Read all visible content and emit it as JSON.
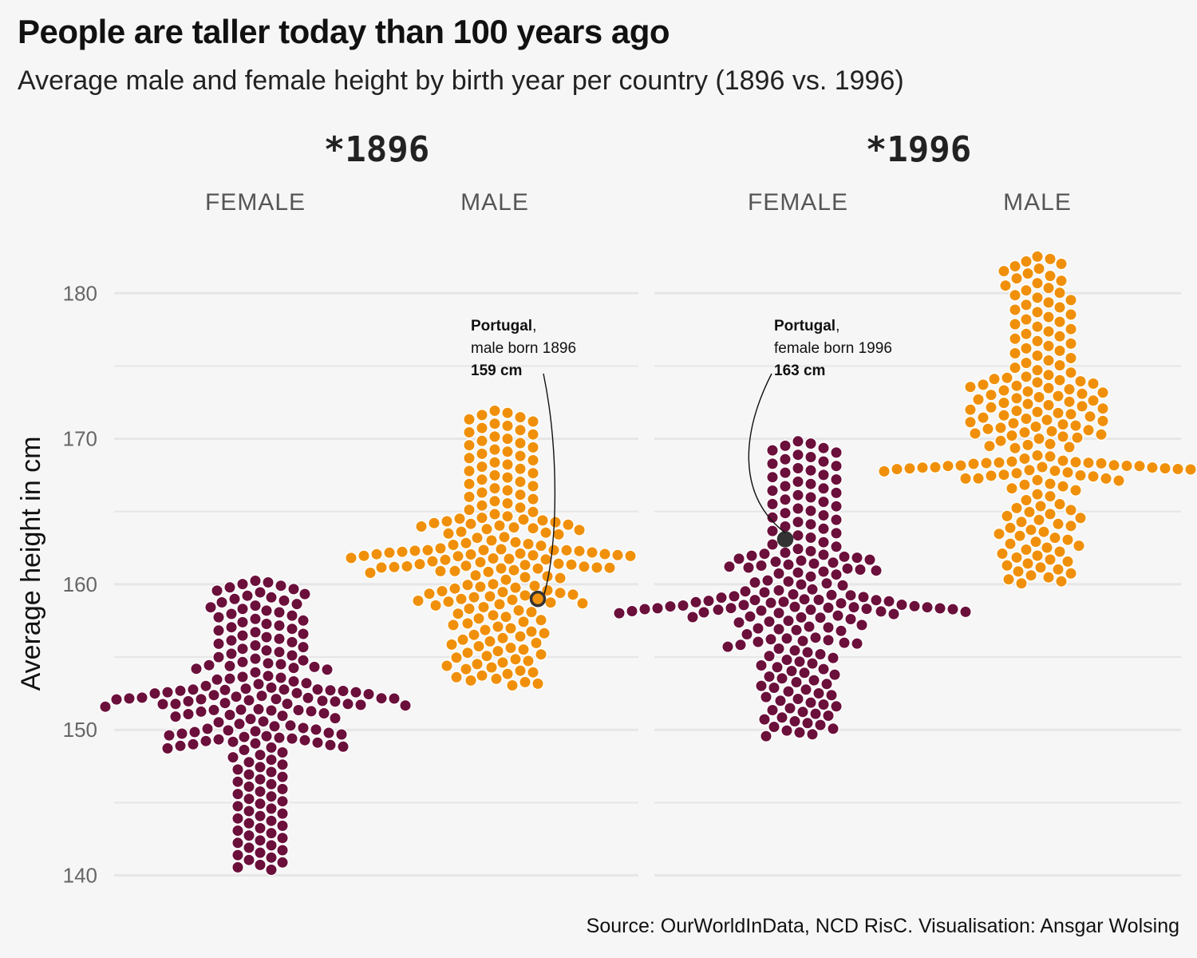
{
  "title": "People are taller today than 100 years ago",
  "subtitle": "Average male and female height by birth year per country (1896 vs. 1996)",
  "source": "Source: OurWorldInData, NCD RisC. Visualisation: Ansgar Wolsing",
  "colors": {
    "female": "#6b0f3b",
    "male": "#f0900a",
    "background": "#f6f6f6",
    "grid": "#e6e6e6",
    "highlight": "#333333"
  },
  "chart_data": {
    "type": "scatter",
    "subtype": "beeswarm",
    "title": "People are taller today than 100 years ago",
    "subtitle": "Average male and female height by birth year per country (1896 vs. 1996)",
    "ylabel": "Average height in cm",
    "ylim": [
      139,
      183
    ],
    "yticks": [
      140,
      150,
      160,
      170,
      180
    ],
    "grid": true,
    "panels": [
      {
        "label": "*1896",
        "groups": [
          {
            "name": "FEMALE",
            "summary": {
              "count": 200,
              "min": 140.3,
              "q1": 148.7,
              "median": 151.5,
              "q3": 154.6,
              "max": 160.3,
              "mode": 152.0
            }
          },
          {
            "name": "MALE",
            "summary": {
              "count": 200,
              "min": 153.0,
              "q1": 158.6,
              "median": 161.6,
              "q3": 164.6,
              "max": 172.0,
              "mode": 161.7
            }
          }
        ]
      },
      {
        "label": "*1996",
        "groups": [
          {
            "name": "FEMALE",
            "summary": {
              "count": 200,
              "min": 149.5,
              "q1": 155.9,
              "median": 158.8,
              "q3": 162.2,
              "max": 169.9,
              "mode": 158.5
            }
          },
          {
            "name": "MALE",
            "summary": {
              "count": 200,
              "min": 160.0,
              "q1": 166.8,
              "median": 170.4,
              "q3": 174.3,
              "max": 182.6,
              "mode": 167.8
            }
          }
        ]
      }
    ],
    "annotations": [
      {
        "panel": 0,
        "group": "MALE",
        "country": "Portugal",
        "line2": "male born 1896",
        "value_label": "159 cm",
        "value": 159.0
      },
      {
        "panel": 1,
        "group": "FEMALE",
        "country": "Portugal",
        "line2": "female born 1996",
        "value_label": "163 cm",
        "value": 163.1
      }
    ]
  }
}
